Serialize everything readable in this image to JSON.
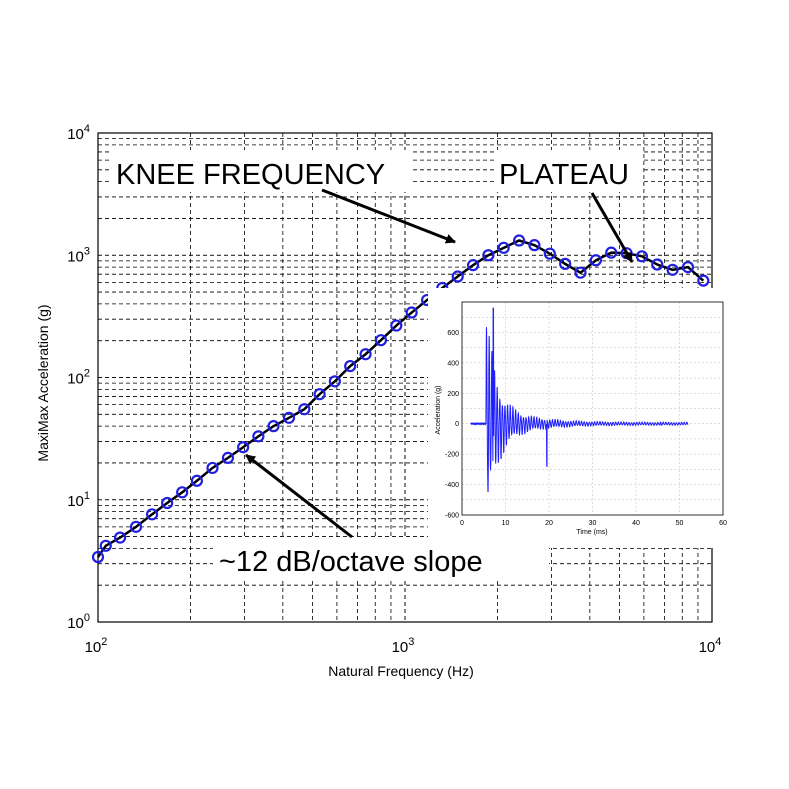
{
  "chart_data": [
    {
      "type": "line",
      "x_scale": "log",
      "y_scale": "log",
      "xlabel": "Natural Frequency (Hz)",
      "ylabel": "MaxiMax Acceleration (g)",
      "xlim": [
        100,
        10000
      ],
      "ylim": [
        1,
        10000
      ],
      "grid": true,
      "x_ticks": [
        {
          "base": "10",
          "exp": "2"
        },
        {
          "base": "10",
          "exp": "3"
        },
        {
          "base": "10",
          "exp": "4"
        }
      ],
      "y_ticks": [
        {
          "base": "10",
          "exp": "0"
        },
        {
          "base": "10",
          "exp": "1"
        },
        {
          "base": "10",
          "exp": "2"
        },
        {
          "base": "10",
          "exp": "3"
        },
        {
          "base": "10",
          "exp": "4"
        }
      ],
      "line_color": "#000000",
      "marker_color": "#1f1fe0",
      "x": [
        100,
        106,
        118,
        133,
        150,
        168,
        188,
        210,
        236,
        265,
        297,
        333,
        373,
        419,
        470,
        527,
        591,
        663,
        744,
        835,
        937,
        1051,
        1180,
        1323,
        1485,
        1666,
        1869,
        2097,
        2353,
        2640,
        2963,
        3324,
        3730,
        4185,
        4696,
        5269,
        5912,
        6633,
        7442,
        8350,
        9369
      ],
      "values": [
        3.4,
        4.2,
        4.9,
        6.0,
        7.6,
        9.4,
        11.5,
        14.3,
        18.2,
        22.0,
        26.9,
        33.0,
        40.0,
        46.8,
        55.0,
        73.0,
        93.0,
        124.0,
        155.0,
        202.0,
        266.0,
        340.0,
        430.0,
        540.0,
        670.0,
        830.0,
        1000.0,
        1150.0,
        1320.0,
        1210.0,
        1030.0,
        850.0,
        720.0,
        910.0,
        1050.0,
        1040.0,
        980.0,
        840.0,
        760.0,
        800.0,
        620.0
      ]
    },
    {
      "type": "line",
      "xlabel": "Time (ms)",
      "ylabel": "Acceleration (g)",
      "xlim": [
        0,
        60
      ],
      "ylim": [
        -600,
        800
      ],
      "grid": true,
      "x_ticks": [
        "0",
        "10",
        "20",
        "30",
        "40",
        "50",
        "60"
      ],
      "y_ticks": [
        "-600",
        "-400",
        "-200",
        "0",
        "200",
        "400",
        "600"
      ],
      "line_color": "#2020ff"
    }
  ],
  "annotations": {
    "knee": "KNEE FREQUENCY",
    "plateau": "PLATEAU",
    "slope": "~12 dB/octave slope"
  }
}
